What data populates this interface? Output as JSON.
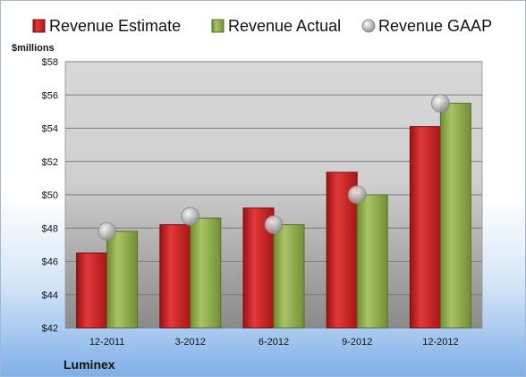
{
  "chart_data": {
    "type": "bar",
    "title": "",
    "unit_label": "$millions",
    "company": "Luminex",
    "categories": [
      "12-2011",
      "3-2012",
      "6-2012",
      "9-2012",
      "12-2012"
    ],
    "series": [
      {
        "name": "Revenue Estimate",
        "kind": "bar",
        "color": "#cc1f1f",
        "values": [
          46.5,
          48.2,
          49.2,
          51.35,
          54.1
        ]
      },
      {
        "name": "Revenue Actual",
        "kind": "bar",
        "color": "#8fb04a",
        "values": [
          47.8,
          48.6,
          48.2,
          50.0,
          55.5
        ]
      },
      {
        "name": "Revenue GAAP",
        "kind": "marker",
        "color": "#b8b8b8",
        "values": [
          47.8,
          48.7,
          48.2,
          50.0,
          55.5
        ]
      }
    ],
    "ylim": [
      42,
      58
    ],
    "y_ticks": [
      "$42",
      "$44",
      "$46",
      "$48",
      "$50",
      "$52",
      "$54",
      "$56",
      "$58"
    ],
    "y_tick_values": [
      42,
      44,
      46,
      48,
      50,
      52,
      54,
      56,
      58
    ],
    "grid": true,
    "legend_position": "top"
  }
}
